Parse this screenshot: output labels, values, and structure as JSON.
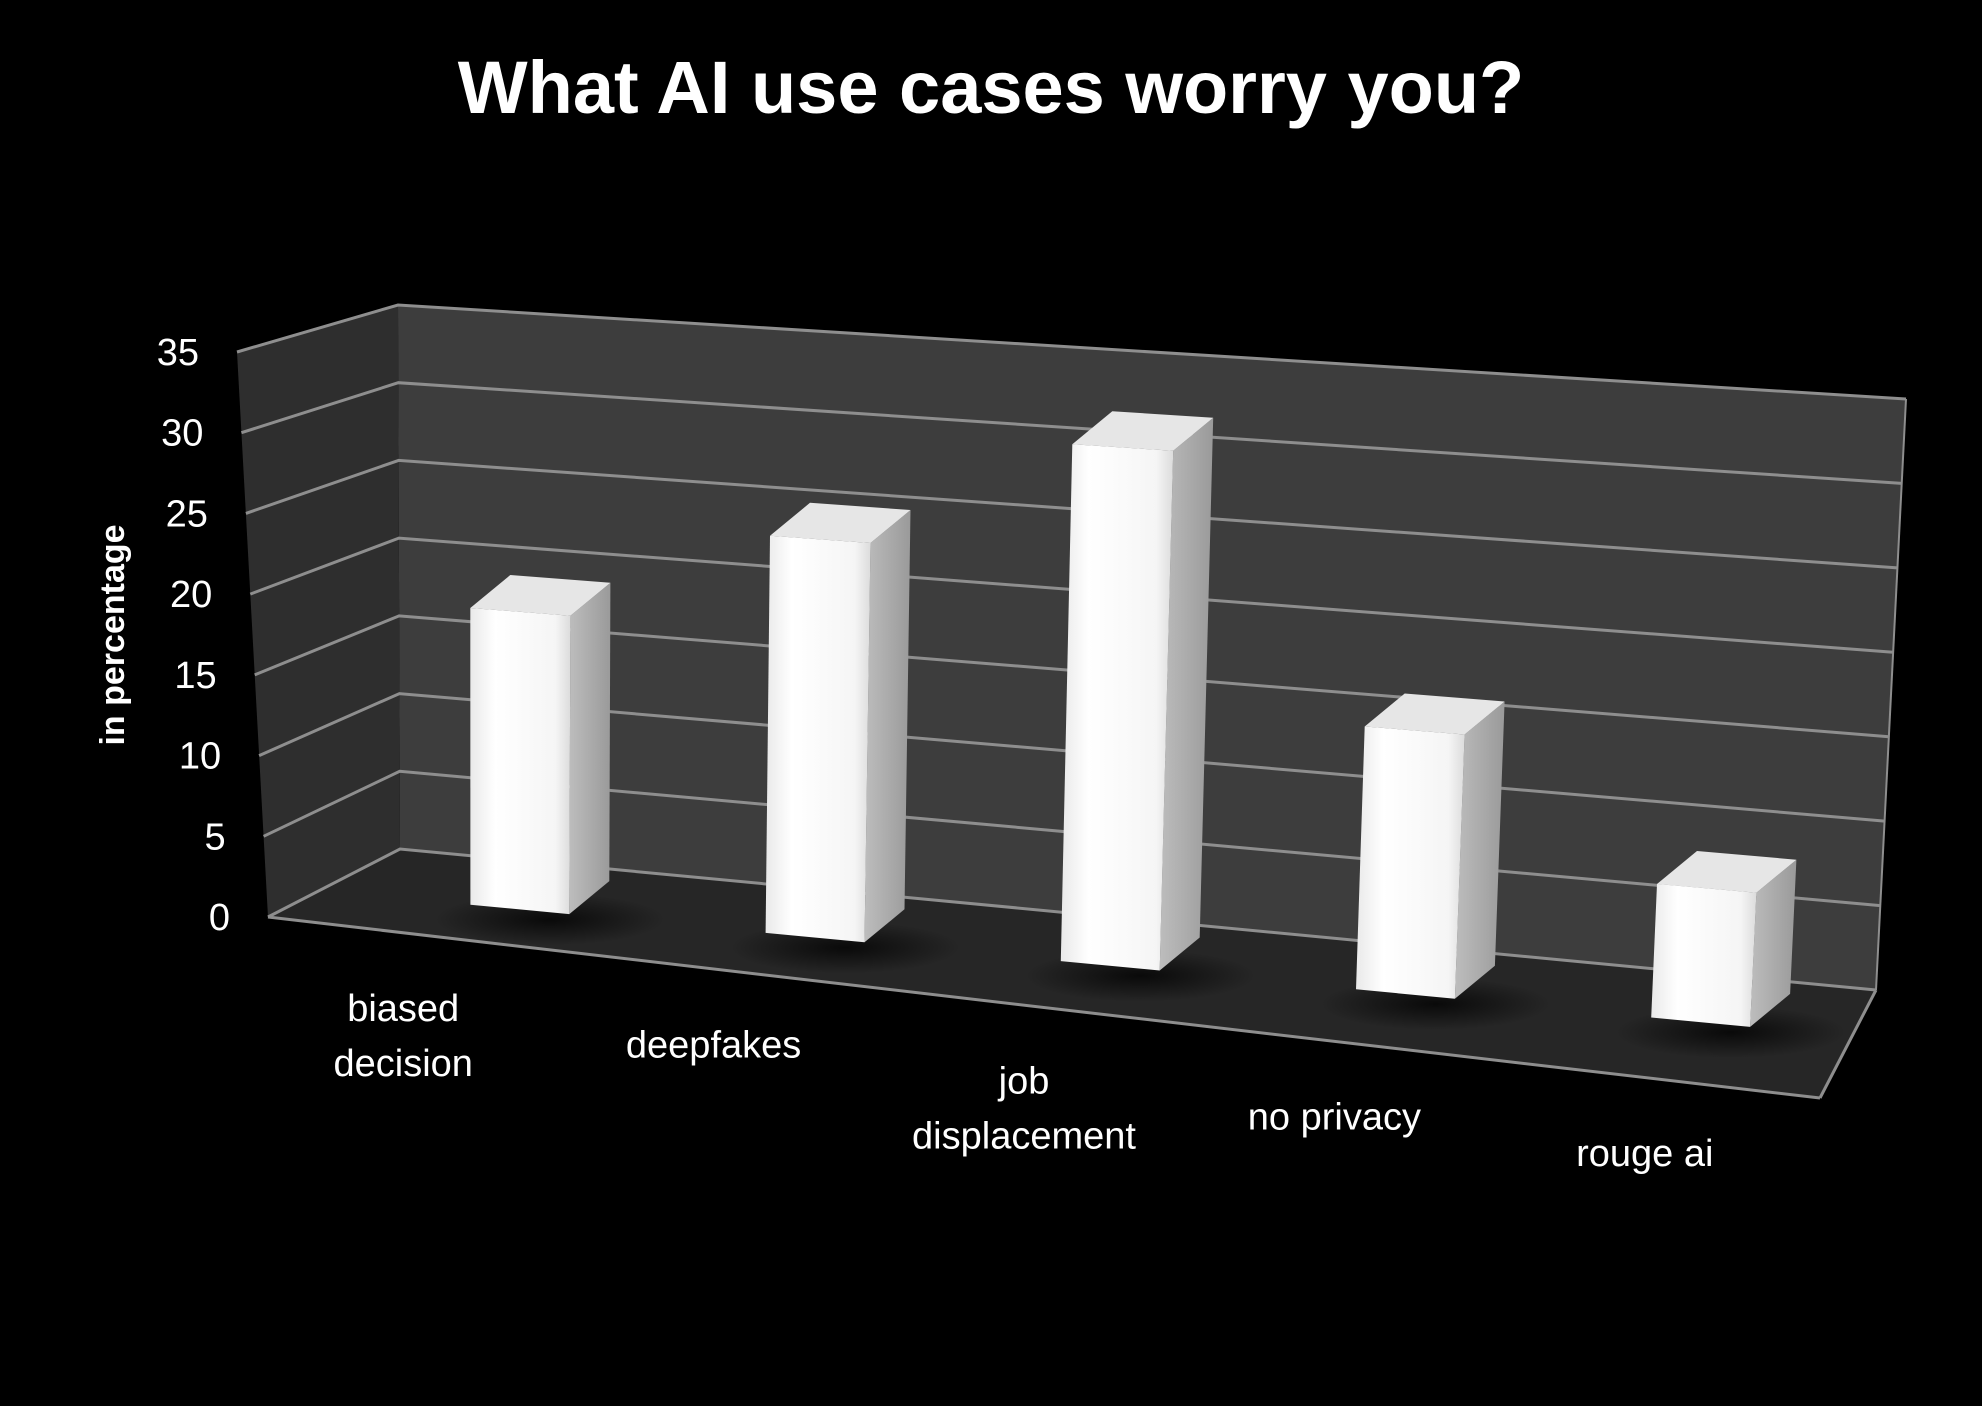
{
  "chart_data": {
    "type": "bar",
    "title": "What AI use cases worry you?",
    "xlabel": "",
    "ylabel": "in percentage",
    "categories": [
      "biased decision",
      "deepfakes",
      "job displacement",
      "no privacy",
      "rouge ai"
    ],
    "category_lines": [
      [
        "biased",
        "decision"
      ],
      [
        "deepfakes"
      ],
      [
        "job",
        "displacement"
      ],
      [
        "no privacy"
      ],
      [
        "rouge ai"
      ]
    ],
    "values": [
      19,
      25,
      32,
      16,
      8
    ],
    "ylim": [
      0,
      35
    ],
    "yticks": [
      "0",
      "5",
      "10",
      "15",
      "20",
      "25",
      "30",
      "35"
    ],
    "grid": true,
    "legend": "none",
    "style": "3d-column",
    "colors": {
      "background": "#000000",
      "back_wall": "#3d3d3d",
      "side_wall": "#2e2e2e",
      "floor": "#262626",
      "gridline": "#8e8e8e",
      "bar_front": "#fbfbfb",
      "bar_side": "#a6a6a6",
      "bar_top": "#e6e6e6",
      "text": "#ffffff"
    }
  }
}
